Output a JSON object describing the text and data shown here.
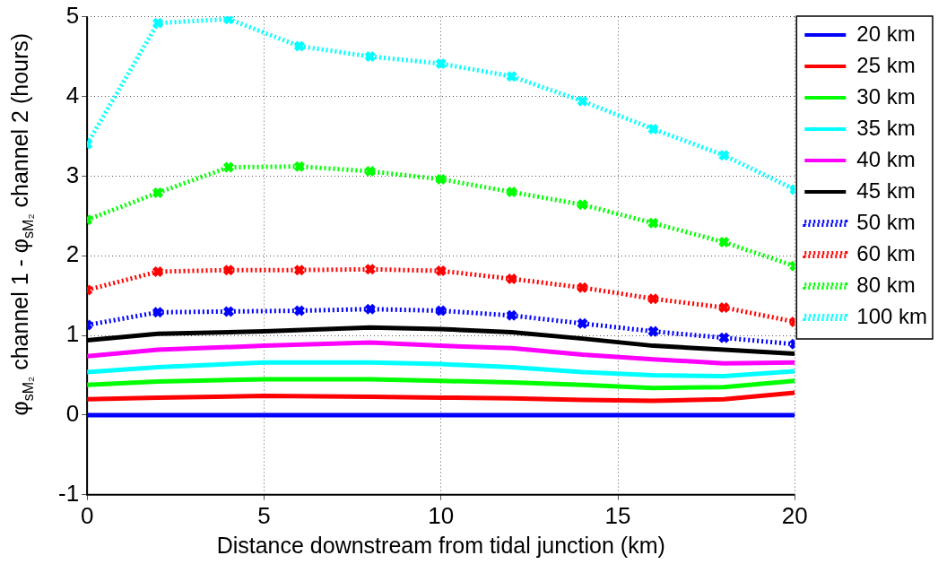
{
  "chart_data": {
    "type": "line",
    "xlabel": "Distance downstream from tidal junction (km)",
    "ylabel": "φ$_{sM₂}$ channel 1 - φ$_{sM₂}$ channel 2 (hours)",
    "xlim": [
      0,
      20
    ],
    "xticks": [
      0,
      5,
      10,
      15,
      20
    ],
    "ylim": [
      -1,
      5
    ],
    "yticks": [
      -1,
      0,
      1,
      2,
      3,
      4,
      5
    ],
    "grid": true,
    "legend": "top right",
    "series": [
      {
        "name": "20 km",
        "color": "#0000ff",
        "line_style": "solid",
        "marker": "none",
        "x": [
          0,
          2,
          5,
          8,
          10,
          12,
          14,
          16,
          18,
          20
        ],
        "values": [
          0,
          0,
          0,
          0,
          0,
          0,
          0,
          0,
          0,
          0
        ]
      },
      {
        "name": "25 km",
        "color": "#ff0000",
        "line_style": "solid",
        "marker": "none",
        "x": [
          0,
          2,
          5,
          8,
          10,
          12,
          14,
          16,
          18,
          20
        ],
        "values": [
          0.2,
          0.22,
          0.24,
          0.23,
          0.22,
          0.21,
          0.19,
          0.18,
          0.2,
          0.28
        ]
      },
      {
        "name": "30 km",
        "color": "#00ff00",
        "line_style": "solid",
        "marker": "none",
        "x": [
          0,
          2,
          5,
          8,
          10,
          12,
          14,
          16,
          18,
          20
        ],
        "values": [
          0.38,
          0.42,
          0.45,
          0.45,
          0.43,
          0.41,
          0.38,
          0.34,
          0.35,
          0.43
        ]
      },
      {
        "name": "35 km",
        "color": "#00ffff",
        "line_style": "solid",
        "marker": "none",
        "x": [
          0,
          2,
          5,
          8,
          10,
          12,
          14,
          16,
          18,
          20
        ],
        "values": [
          0.54,
          0.6,
          0.66,
          0.66,
          0.64,
          0.6,
          0.54,
          0.5,
          0.49,
          0.55
        ]
      },
      {
        "name": "40 km",
        "color": "#ff00ff",
        "line_style": "solid",
        "marker": "none",
        "x": [
          0,
          2,
          5,
          8,
          10,
          12,
          14,
          16,
          18,
          20
        ],
        "values": [
          0.74,
          0.82,
          0.87,
          0.91,
          0.87,
          0.84,
          0.76,
          0.7,
          0.65,
          0.66
        ]
      },
      {
        "name": "45 km",
        "color": "#000000",
        "line_style": "solid",
        "marker": "none",
        "x": [
          0,
          2,
          5,
          8,
          10,
          12,
          14,
          16,
          18,
          20
        ],
        "values": [
          0.94,
          1.02,
          1.05,
          1.1,
          1.08,
          1.04,
          0.96,
          0.87,
          0.82,
          0.77
        ]
      },
      {
        "name": "50 km",
        "color": "#0000ff",
        "line_style": "dotted",
        "marker": "cross",
        "x": [
          0,
          2,
          4,
          6,
          8,
          10,
          12,
          14,
          16,
          18,
          20
        ],
        "values": [
          1.13,
          1.29,
          1.3,
          1.31,
          1.33,
          1.31,
          1.25,
          1.15,
          1.05,
          0.97,
          0.89
        ]
      },
      {
        "name": "60 km",
        "color": "#ff0000",
        "line_style": "dotted",
        "marker": "cross",
        "x": [
          0,
          2,
          4,
          6,
          8,
          10,
          12,
          14,
          16,
          18,
          20
        ],
        "values": [
          1.57,
          1.8,
          1.82,
          1.82,
          1.83,
          1.81,
          1.71,
          1.6,
          1.46,
          1.35,
          1.17
        ]
      },
      {
        "name": "80 km",
        "color": "#00ff00",
        "line_style": "dotted",
        "marker": "cross",
        "x": [
          0,
          2,
          4,
          6,
          8,
          10,
          12,
          14,
          16,
          18,
          20
        ],
        "values": [
          2.45,
          2.79,
          3.11,
          3.12,
          3.06,
          2.96,
          2.8,
          2.64,
          2.41,
          2.17,
          1.87
        ]
      },
      {
        "name": "100 km",
        "color": "#00ffff",
        "line_style": "dotted",
        "marker": "cross",
        "x": [
          0,
          2,
          4,
          6,
          8,
          10,
          12,
          14,
          16,
          18,
          20
        ],
        "values": [
          3.4,
          4.92,
          4.97,
          4.63,
          4.5,
          4.41,
          4.25,
          3.94,
          3.59,
          3.26,
          2.83
        ]
      }
    ]
  }
}
